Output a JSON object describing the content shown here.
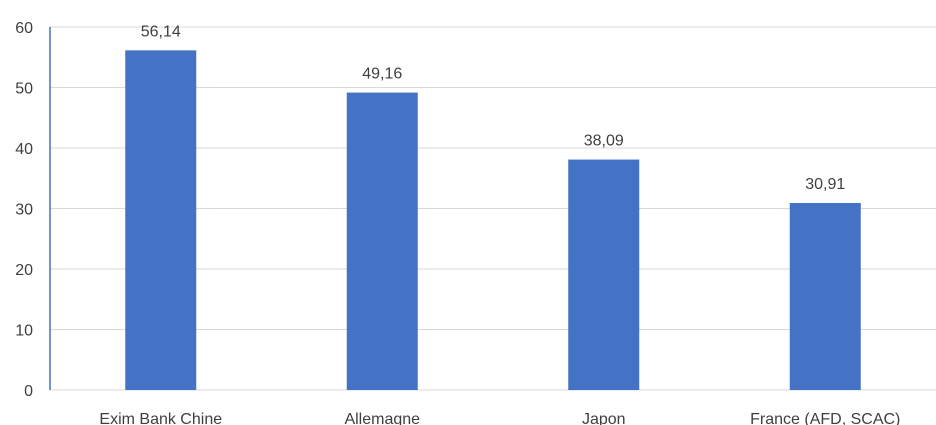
{
  "chart_data": {
    "type": "bar",
    "title": "",
    "xlabel": "",
    "ylabel": "",
    "categories": [
      "Exim Bank Chine",
      "Allemagne",
      "Japon",
      "France (AFD, SCAC)"
    ],
    "values": [
      56.14,
      49.16,
      38.09,
      30.91
    ],
    "data_labels": [
      "56,14",
      "49,16",
      "38,09",
      "30,91"
    ],
    "ylim": [
      0,
      60
    ],
    "yticks": [
      "0",
      "10",
      "20",
      "30",
      "40",
      "50",
      "60"
    ],
    "grid": true,
    "legend": "none",
    "colors": {
      "bar": "#4472c4",
      "gridline": "#d9d9d9",
      "axis": "#4472c4",
      "text": "#3f3f3f"
    }
  }
}
